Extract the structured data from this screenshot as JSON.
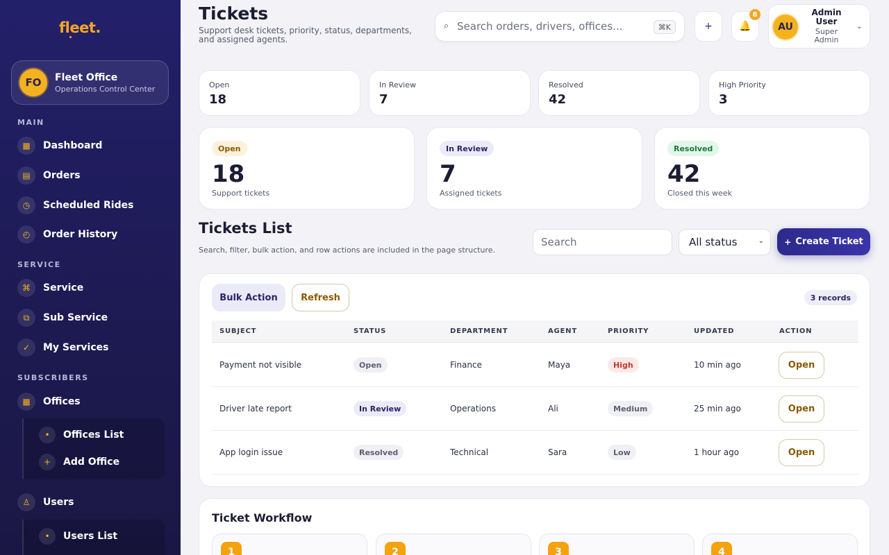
{
  "brand": {
    "logo": "fleet."
  },
  "office": {
    "initials": "FO",
    "name": "Fleet Office",
    "subtitle": "Operations Control Center"
  },
  "sidebar": {
    "sections": {
      "main": "MAIN",
      "service": "SERVICE",
      "subscribers": "SUBSCRIBERS"
    },
    "items": {
      "dashboard": {
        "label": "Dashboard",
        "icon": "grid-icon"
      },
      "orders": {
        "label": "Orders",
        "icon": "box-icon"
      },
      "scheduled_rides": {
        "label": "Scheduled Rides",
        "icon": "clock-icon"
      },
      "order_history": {
        "label": "Order History",
        "icon": "history-icon"
      },
      "service": {
        "label": "Service",
        "icon": "command-icon"
      },
      "sub_service": {
        "label": "Sub Service",
        "icon": "layers-icon"
      },
      "my_services": {
        "label": "My Services",
        "icon": "check-icon"
      },
      "offices": {
        "label": "Offices",
        "icon": "building-icon"
      },
      "offices_list": {
        "label": "Offices List"
      },
      "add_office": {
        "label": "Add Office"
      },
      "users": {
        "label": "Users",
        "icon": "user-icon"
      },
      "users_list": {
        "label": "Users List"
      }
    }
  },
  "header": {
    "title": "Tickets",
    "subtitle": "Support desk tickets, priority, status, departments, and assigned agents.",
    "search_placeholder": "Search orders, drivers, offices...",
    "shortcut": "⌘K",
    "add_label": "+",
    "notifications_count": "8",
    "user": {
      "initials": "AU",
      "name": "Admin User",
      "role": "Super Admin"
    }
  },
  "stats_small": [
    {
      "label": "Open",
      "value": "18"
    },
    {
      "label": "In Review",
      "value": "7"
    },
    {
      "label": "Resolved",
      "value": "42"
    },
    {
      "label": "High Priority",
      "value": "3"
    }
  ],
  "stats_big": [
    {
      "pill": "Open",
      "value": "18",
      "caption": "Support tickets",
      "pill_bg": "#fdf1dc",
      "pill_color": "#8a5a00"
    },
    {
      "pill": "In Review",
      "value": "7",
      "caption": "Assigned tickets",
      "pill_bg": "#ebeaf8",
      "pill_color": "#2a2468"
    },
    {
      "pill": "Resolved",
      "value": "42",
      "caption": "Closed this week",
      "pill_bg": "#e3f6ea",
      "pill_color": "#1d7a3c"
    }
  ],
  "list": {
    "title": "Tickets List",
    "subtitle": "Search, filter, bulk action, and row actions are included in the page structure.",
    "search_placeholder": "Search",
    "status_filter": "All status",
    "create_label": "Create Ticket",
    "bulk_label": "Bulk Action",
    "refresh_label": "Refresh",
    "records": "3 records",
    "columns": [
      "SUBJECT",
      "STATUS",
      "DEPARTMENT",
      "AGENT",
      "PRIORITY",
      "UPDATED",
      "ACTION"
    ],
    "rows": [
      {
        "subject": "Payment not visible",
        "status": "Open",
        "department": "Finance",
        "agent": "Maya",
        "priority": "High",
        "updated": "10 min ago",
        "action": "Open"
      },
      {
        "subject": "Driver late report",
        "status": "In Review",
        "department": "Operations",
        "agent": "Ali",
        "priority": "Medium",
        "updated": "25 min ago",
        "action": "Open"
      },
      {
        "subject": "App login issue",
        "status": "Resolved",
        "department": "Technical",
        "agent": "Sara",
        "priority": "Low",
        "updated": "1 hour ago",
        "action": "Open"
      }
    ]
  },
  "workflow": {
    "title": "Ticket Workflow",
    "steps": [
      "1",
      "2",
      "3",
      "4"
    ]
  },
  "colors": {
    "accent": "#f5a623",
    "primary": "#2d2a8c",
    "sidebar": "#23206a"
  }
}
